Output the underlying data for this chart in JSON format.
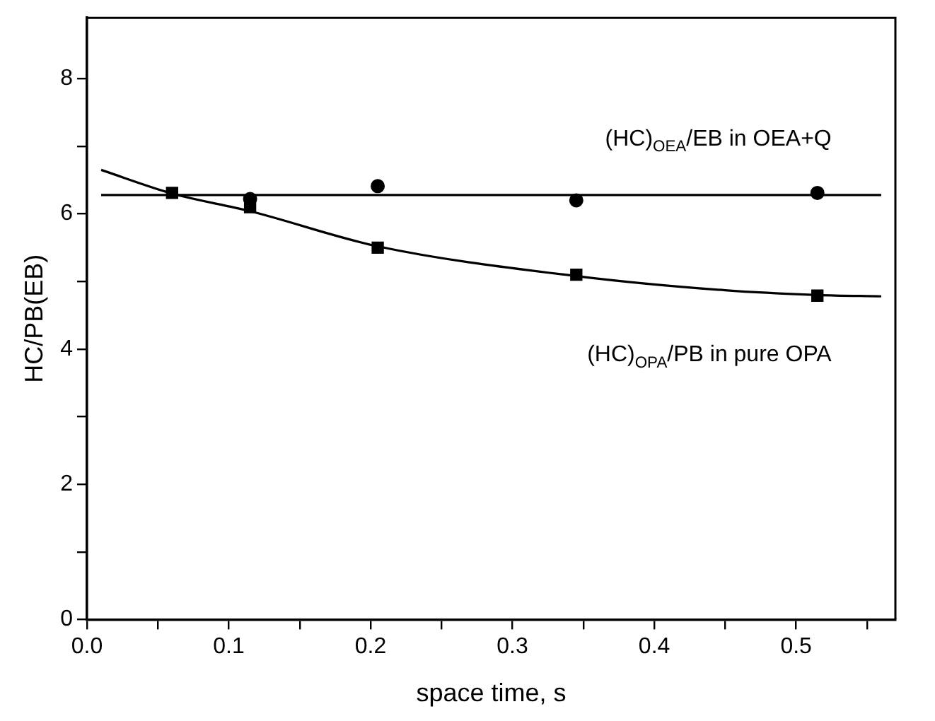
{
  "chart_data": {
    "type": "scatter",
    "xlabel": "space time, s",
    "ylabel": "HC/PB(EB)",
    "xlim": [
      0,
      0.57
    ],
    "ylim": [
      0,
      8.9
    ],
    "xticks": [
      {
        "value": 0,
        "label": "0.0"
      },
      {
        "value": 0.05,
        "label": null
      },
      0.1,
      {
        "value": 0.15,
        "label": null
      },
      0.2,
      {
        "value": 0.25,
        "label": null
      },
      0.3,
      {
        "value": 0.35,
        "label": null
      },
      0.4,
      {
        "value": 0.45,
        "label": null
      },
      0.5,
      {
        "value": 0.55,
        "label": null
      }
    ],
    "yticks": [
      0,
      {
        "value": 1,
        "label": null
      },
      2,
      {
        "value": 3,
        "label": null
      },
      4,
      {
        "value": 5,
        "label": null
      },
      6,
      {
        "value": 7,
        "label": null
      },
      8
    ],
    "grid": false,
    "legend": false,
    "series": [
      {
        "type": "line",
        "color": "#000000",
        "marker": "none",
        "x": [
          0.01,
          0.56
        ],
        "values": [
          6.28,
          6.28
        ]
      },
      {
        "type": "line",
        "color": "#000000",
        "marker": "none",
        "x": [
          0.01,
          0.06,
          0.115,
          0.205,
          0.345,
          0.45,
          0.515,
          0.56
        ],
        "values": [
          6.65,
          6.3,
          6.04,
          5.52,
          5.08,
          4.87,
          4.8,
          4.78
        ]
      },
      {
        "name": "(HC)$_{OEA}$/EB in OEA+Q",
        "color": "#000000",
        "marker": "circle",
        "x": [
          0.115,
          0.205,
          0.345,
          0.515
        ],
        "values": [
          6.22,
          6.41,
          6.2,
          6.31
        ]
      },
      {
        "name": "(HC)$_{OPA}$/PB in pure OPA",
        "color": "#000000",
        "marker": "square",
        "x": [
          0.06,
          0.115,
          0.205,
          0.345,
          0.515
        ],
        "values": [
          6.31,
          6.1,
          5.5,
          5.1,
          4.79
        ]
      }
    ]
  }
}
